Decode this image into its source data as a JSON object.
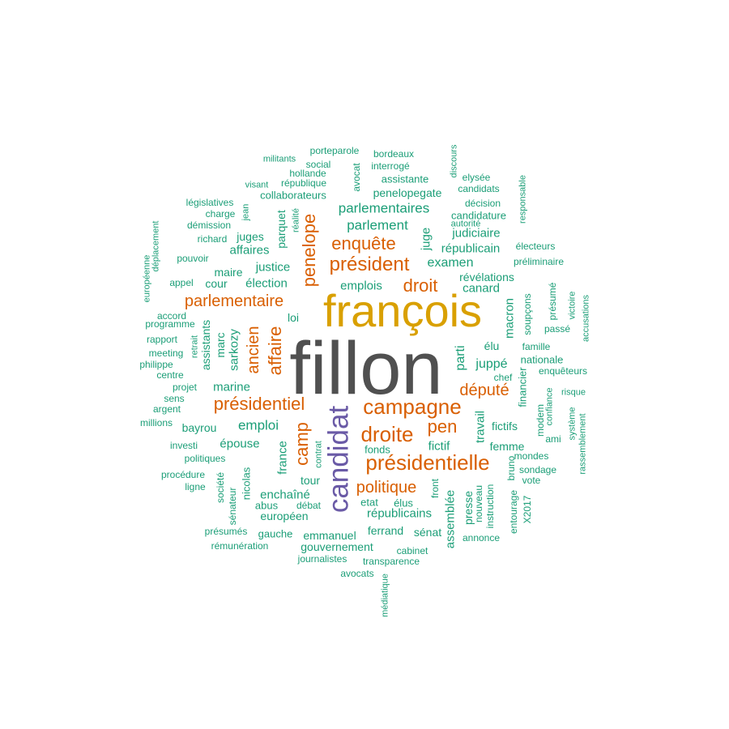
{
  "colors": {
    "top": "#505050",
    "second": "#d9a000",
    "third": "#6a5aa6",
    "tier_major": "#d95f02",
    "tier_minor": "#1b9e77"
  },
  "words": [
    {
      "text": "fillon",
      "tier": "top"
    },
    {
      "text": "françois",
      "tier": "second"
    },
    {
      "text": "candidat",
      "tier": "third"
    },
    {
      "text": "présidentielle",
      "tier": "tier_major"
    },
    {
      "text": "campagne",
      "tier": "tier_major"
    },
    {
      "text": "droite",
      "tier": "tier_major"
    },
    {
      "text": "président",
      "tier": "tier_major"
    },
    {
      "text": "présidentiel",
      "tier": "tier_major"
    },
    {
      "text": "penelope",
      "tier": "tier_major"
    },
    {
      "text": "affaire",
      "tier": "tier_major"
    },
    {
      "text": "enquête",
      "tier": "tier_major"
    },
    {
      "text": "droit",
      "tier": "tier_major"
    },
    {
      "text": "parlementaire",
      "tier": "tier_major"
    },
    {
      "text": "camp",
      "tier": "tier_major"
    },
    {
      "text": "pen",
      "tier": "tier_major"
    },
    {
      "text": "politique",
      "tier": "tier_major"
    },
    {
      "text": "député",
      "tier": "tier_major"
    },
    {
      "text": "ancien",
      "tier": "tier_major"
    },
    {
      "text": "parlementaires",
      "tier": "tier_minor"
    },
    {
      "text": "parlement",
      "tier": "tier_minor"
    },
    {
      "text": "emploi",
      "tier": "tier_minor"
    },
    {
      "text": "examen",
      "tier": "tier_minor"
    },
    {
      "text": "élection",
      "tier": "tier_minor"
    },
    {
      "text": "justice",
      "tier": "tier_minor"
    },
    {
      "text": "affaires",
      "tier": "tier_minor"
    },
    {
      "text": "emplois",
      "tier": "tier_minor"
    },
    {
      "text": "canard",
      "tier": "tier_minor"
    },
    {
      "text": "républicain",
      "tier": "tier_minor"
    },
    {
      "text": "judiciaire",
      "tier": "tier_minor"
    },
    {
      "text": "juge",
      "tier": "tier_minor"
    },
    {
      "text": "parquet",
      "tier": "tier_minor"
    },
    {
      "text": "juges",
      "tier": "tier_minor"
    },
    {
      "text": "maire",
      "tier": "tier_minor"
    },
    {
      "text": "cour",
      "tier": "tier_minor"
    },
    {
      "text": "marine",
      "tier": "tier_minor"
    },
    {
      "text": "sarkozy",
      "tier": "tier_minor"
    },
    {
      "text": "assistants",
      "tier": "tier_minor"
    },
    {
      "text": "marc",
      "tier": "tier_minor"
    },
    {
      "text": "loi",
      "tier": "tier_minor"
    },
    {
      "text": "parti",
      "tier": "tier_minor"
    },
    {
      "text": "juppé",
      "tier": "tier_minor"
    },
    {
      "text": "élu",
      "tier": "tier_minor"
    },
    {
      "text": "macron",
      "tier": "tier_minor"
    },
    {
      "text": "révélations",
      "tier": "tier_minor"
    },
    {
      "text": "fictifs",
      "tier": "tier_minor"
    },
    {
      "text": "fictif",
      "tier": "tier_minor"
    },
    {
      "text": "travail",
      "tier": "tier_minor"
    },
    {
      "text": "femme",
      "tier": "tier_minor"
    },
    {
      "text": "fonds",
      "tier": "tier_minor"
    },
    {
      "text": "épouse",
      "tier": "tier_minor"
    },
    {
      "text": "france",
      "tier": "tier_minor"
    },
    {
      "text": "nicolas",
      "tier": "tier_minor"
    },
    {
      "text": "enchaîné",
      "tier": "tier_minor"
    },
    {
      "text": "européen",
      "tier": "tier_minor"
    },
    {
      "text": "républicains",
      "tier": "tier_minor"
    },
    {
      "text": "assemblée",
      "tier": "tier_minor"
    },
    {
      "text": "presse",
      "tier": "tier_minor"
    },
    {
      "text": "emmanuel",
      "tier": "tier_minor"
    },
    {
      "text": "gouvernement",
      "tier": "tier_minor"
    },
    {
      "text": "ferrand",
      "tier": "tier_minor"
    },
    {
      "text": "sénat",
      "tier": "tier_minor"
    },
    {
      "text": "élus",
      "tier": "tier_minor"
    },
    {
      "text": "etat",
      "tier": "tier_minor"
    },
    {
      "text": "tour",
      "tier": "tier_minor"
    },
    {
      "text": "abus",
      "tier": "tier_minor"
    },
    {
      "text": "débat",
      "tier": "tier_minor"
    },
    {
      "text": "gauche",
      "tier": "tier_minor"
    },
    {
      "text": "journalistes",
      "tier": "tier_minor"
    },
    {
      "text": "transparence",
      "tier": "tier_minor"
    },
    {
      "text": "cabinet",
      "tier": "tier_minor"
    },
    {
      "text": "avocats",
      "tier": "tier_minor"
    },
    {
      "text": "médiatique",
      "tier": "tier_minor"
    },
    {
      "text": "rémunération",
      "tier": "tier_minor"
    },
    {
      "text": "présumés",
      "tier": "tier_minor"
    },
    {
      "text": "sénateur",
      "tier": "tier_minor"
    },
    {
      "text": "société",
      "tier": "tier_minor"
    },
    {
      "text": "ligne",
      "tier": "tier_minor"
    },
    {
      "text": "procédure",
      "tier": "tier_minor"
    },
    {
      "text": "politiques",
      "tier": "tier_minor"
    },
    {
      "text": "investi",
      "tier": "tier_minor"
    },
    {
      "text": "bayrou",
      "tier": "tier_minor"
    },
    {
      "text": "millions",
      "tier": "tier_minor"
    },
    {
      "text": "argent",
      "tier": "tier_minor"
    },
    {
      "text": "sens",
      "tier": "tier_minor"
    },
    {
      "text": "projet",
      "tier": "tier_minor"
    },
    {
      "text": "centre",
      "tier": "tier_minor"
    },
    {
      "text": "philippe",
      "tier": "tier_minor"
    },
    {
      "text": "meeting",
      "tier": "tier_minor"
    },
    {
      "text": "rapport",
      "tier": "tier_minor"
    },
    {
      "text": "retrait",
      "tier": "tier_minor"
    },
    {
      "text": "programme",
      "tier": "tier_minor"
    },
    {
      "text": "accord",
      "tier": "tier_minor"
    },
    {
      "text": "appel",
      "tier": "tier_minor"
    },
    {
      "text": "pouvoir",
      "tier": "tier_minor"
    },
    {
      "text": "richard",
      "tier": "tier_minor"
    },
    {
      "text": "démission",
      "tier": "tier_minor"
    },
    {
      "text": "charge",
      "tier": "tier_minor"
    },
    {
      "text": "législatives",
      "tier": "tier_minor"
    },
    {
      "text": "jean",
      "tier": "tier_minor"
    },
    {
      "text": "européenne",
      "tier": "tier_minor"
    },
    {
      "text": "déplacement",
      "tier": "tier_minor"
    },
    {
      "text": "collaborateurs",
      "tier": "tier_minor"
    },
    {
      "text": "visant",
      "tier": "tier_minor"
    },
    {
      "text": "république",
      "tier": "tier_minor"
    },
    {
      "text": "hollande",
      "tier": "tier_minor"
    },
    {
      "text": "social",
      "tier": "tier_minor"
    },
    {
      "text": "militants",
      "tier": "tier_minor"
    },
    {
      "text": "porteparole",
      "tier": "tier_minor"
    },
    {
      "text": "bordeaux",
      "tier": "tier_minor"
    },
    {
      "text": "interrogé",
      "tier": "tier_minor"
    },
    {
      "text": "avocat",
      "tier": "tier_minor"
    },
    {
      "text": "assistante",
      "tier": "tier_minor"
    },
    {
      "text": "penelopegate",
      "tier": "tier_minor"
    },
    {
      "text": "réalité",
      "tier": "tier_minor"
    },
    {
      "text": "discours",
      "tier": "tier_minor"
    },
    {
      "text": "elysée",
      "tier": "tier_minor"
    },
    {
      "text": "candidats",
      "tier": "tier_minor"
    },
    {
      "text": "décision",
      "tier": "tier_minor"
    },
    {
      "text": "candidature",
      "tier": "tier_minor"
    },
    {
      "text": "autorité",
      "tier": "tier_minor"
    },
    {
      "text": "responsable",
      "tier": "tier_minor"
    },
    {
      "text": "électeurs",
      "tier": "tier_minor"
    },
    {
      "text": "préliminaire",
      "tier": "tier_minor"
    },
    {
      "text": "soupçons",
      "tier": "tier_minor"
    },
    {
      "text": "présumé",
      "tier": "tier_minor"
    },
    {
      "text": "victoire",
      "tier": "tier_minor"
    },
    {
      "text": "accusations",
      "tier": "tier_minor"
    },
    {
      "text": "passé",
      "tier": "tier_minor"
    },
    {
      "text": "famille",
      "tier": "tier_minor"
    },
    {
      "text": "nationale",
      "tier": "tier_minor"
    },
    {
      "text": "enquêteurs",
      "tier": "tier_minor"
    },
    {
      "text": "chef",
      "tier": "tier_minor"
    },
    {
      "text": "financier",
      "tier": "tier_minor"
    },
    {
      "text": "risque",
      "tier": "tier_minor"
    },
    {
      "text": "confiance",
      "tier": "tier_minor"
    },
    {
      "text": "modem",
      "tier": "tier_minor"
    },
    {
      "text": "système",
      "tier": "tier_minor"
    },
    {
      "text": "rassemblement",
      "tier": "tier_minor"
    },
    {
      "text": "ami",
      "tier": "tier_minor"
    },
    {
      "text": "mondes",
      "tier": "tier_minor"
    },
    {
      "text": "sondage",
      "tier": "tier_minor"
    },
    {
      "text": "vote",
      "tier": "tier_minor"
    },
    {
      "text": "bruno",
      "tier": "tier_minor"
    },
    {
      "text": "entourage",
      "tier": "tier_minor"
    },
    {
      "text": "X2017",
      "tier": "tier_minor"
    },
    {
      "text": "annonce",
      "tier": "tier_minor"
    },
    {
      "text": "instruction",
      "tier": "tier_minor"
    },
    {
      "text": "nouveau",
      "tier": "tier_minor"
    },
    {
      "text": "front",
      "tier": "tier_minor"
    },
    {
      "text": "contrat",
      "tier": "tier_minor"
    }
  ]
}
